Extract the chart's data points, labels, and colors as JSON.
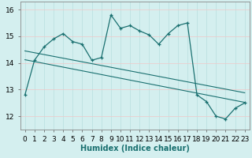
{
  "title": "",
  "xlabel": "Humidex (Indice chaleur)",
  "ylabel": "",
  "bg_color": "#d4efef",
  "plot_bg_color": "#d4efef",
  "line_color": "#1a7070",
  "grid_color": "#c8e8e8",
  "grid_h_color": "#f5c8c8",
  "xlim": [
    -0.5,
    23.5
  ],
  "ylim": [
    11.5,
    16.3
  ],
  "yticks": [
    12,
    13,
    14,
    15,
    16
  ],
  "xticks": [
    0,
    1,
    2,
    3,
    4,
    5,
    6,
    7,
    8,
    9,
    10,
    11,
    12,
    13,
    14,
    15,
    16,
    17,
    18,
    19,
    20,
    21,
    22,
    23
  ],
  "main_y": [
    12.8,
    14.1,
    14.6,
    14.9,
    15.1,
    14.8,
    14.7,
    14.1,
    14.2,
    15.8,
    15.3,
    15.4,
    15.2,
    15.05,
    14.7,
    15.1,
    15.4,
    15.5,
    12.8,
    12.55,
    12.0,
    11.9,
    12.3,
    12.5
  ],
  "trend1_x": [
    0,
    23
  ],
  "trend1_y": [
    14.12,
    12.52
  ],
  "trend2_x": [
    0,
    23
  ],
  "trend2_y": [
    14.45,
    12.88
  ],
  "font_size_xlabel": 7,
  "tick_fontsize": 6.5
}
